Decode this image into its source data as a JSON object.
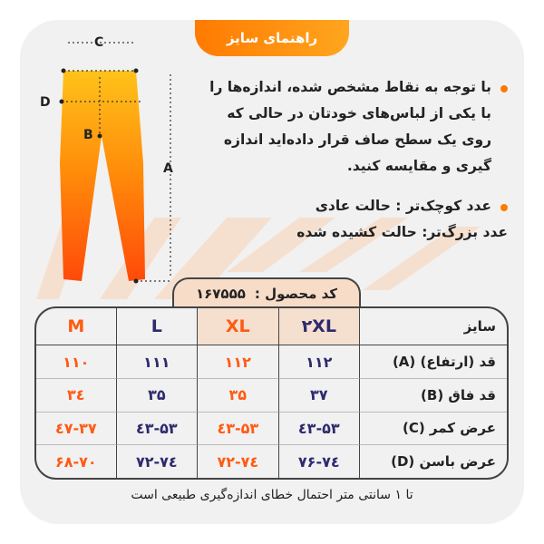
{
  "title": "راهنمای سایز",
  "instructions": [
    "با توجه به نقاط مشخص شده، اندازه‌ها را با یکی از لباس‌های خودتان در حالی که روی یک سطح صاف قرار داده‌اید اندازه گیری و مقایسه کنید.",
    "عدد کوچک‌تر : حالت عادی",
    "عدد بزرگ‌تر: حالت کشیده شده"
  ],
  "diagram_labels": {
    "a": "A",
    "b": "B",
    "c": "C",
    "d": "D"
  },
  "product_code": {
    "label": "کد محصول :",
    "value": "۱۶۷۵۵۵"
  },
  "table": {
    "header": {
      "label": "سایز",
      "sizes": [
        "۲XL",
        "XL",
        "L",
        "M"
      ]
    },
    "rows": [
      {
        "label": "قد (ارتفاع) (A)",
        "values": [
          "۱۱۲",
          "۱۱۲",
          "۱۱۱",
          "۱۱۰"
        ]
      },
      {
        "label": "قد فاق (B)",
        "values": [
          "۳۷",
          "۳۵",
          "۳۵",
          "۳٤"
        ]
      },
      {
        "label": "عرض کمر (C)",
        "values": [
          "٤۳-۵۳",
          "٤۳-۵۳",
          "٤۳-۵۳",
          "۳۷-٤۷"
        ]
      },
      {
        "label": "عرض باسن (D)",
        "values": [
          "۷٤-۷۶",
          "۷۲-۷٤",
          "۷۲-۷٤",
          "۶۸-۷۰"
        ]
      }
    ]
  },
  "footer": "تا ۱ سانتی متر احتمال خطای اندازه‌گیری طبیعی است",
  "colors": {
    "accent": "#ff7a00",
    "navy": "#2e2a6e",
    "orange_text": "#ff5a12"
  }
}
